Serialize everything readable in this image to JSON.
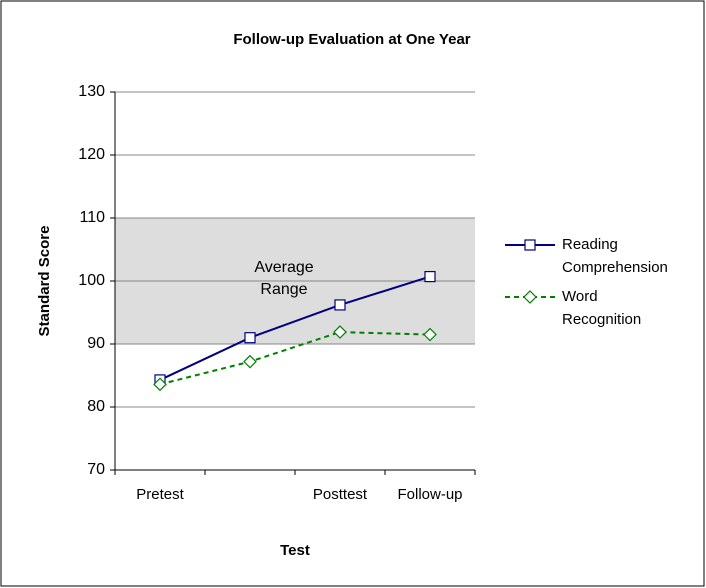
{
  "chart_data": {
    "type": "line",
    "title": "Follow-up Evaluation at One Year",
    "x_label": "Test",
    "y_label": "Standard Score",
    "categories": [
      "Pretest",
      null,
      "Posttest",
      "Follow-up"
    ],
    "series": [
      {
        "name": "Reading Comprehension",
        "color": "#000080",
        "dash": false,
        "marker": "square",
        "values": [
          84.3,
          91,
          96.2,
          100.7
        ]
      },
      {
        "name": "Word Recognition",
        "color": "#008000",
        "dash": true,
        "marker": "diamond",
        "values": [
          83.6,
          87.2,
          91.9,
          91.5
        ]
      }
    ],
    "ylim": [
      70,
      130
    ],
    "yticks": [
      70,
      80,
      90,
      100,
      110,
      120,
      130
    ],
    "grid": true,
    "shaded_range": [
      90,
      110
    ],
    "annotation": [
      "Average",
      "Range"
    ],
    "legend": "right"
  }
}
